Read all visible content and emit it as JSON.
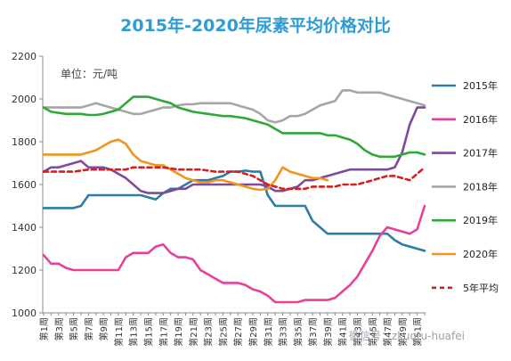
{
  "chart_data": {
    "type": "line",
    "title": "2015年-2020年尿素平均价格对比",
    "unit": "单位：元/吨",
    "watermark": "微信号：zkuotu-huafei",
    "ylim": [
      1000,
      2200
    ],
    "yticks": [
      1000,
      1200,
      1400,
      1600,
      1800,
      2000,
      2200
    ],
    "week_count": 52,
    "xtick_labels": [
      "第1周",
      "第3周",
      "第5周",
      "第7周",
      "第9周",
      "第11周",
      "第13周",
      "第15周",
      "第17周",
      "第19周",
      "第21周",
      "第23周",
      "第25周",
      "第27周",
      "第29周",
      "第31周",
      "第33周",
      "第35周",
      "第37周",
      "第39周",
      "第41周",
      "第43周",
      "第45周",
      "第47周",
      "第49周",
      "第51周"
    ],
    "grid": false,
    "legend_position": "right",
    "series": [
      {
        "name": "2015年",
        "color": "#2b7ca6",
        "dash": false,
        "values": [
          1490,
          1490,
          1490,
          1490,
          1490,
          1500,
          1550,
          1550,
          1550,
          1550,
          1550,
          1550,
          1550,
          1550,
          1540,
          1530,
          1560,
          1580,
          1580,
          1600,
          1620,
          1620,
          1620,
          1630,
          1640,
          1660,
          1660,
          1665,
          1660,
          1660,
          1550,
          1500,
          1500,
          1500,
          1500,
          1500,
          1430,
          1400,
          1370,
          1370,
          1370,
          1370,
          1370,
          1370,
          1370,
          1370,
          1370,
          1340,
          1320,
          1310,
          1300,
          1290
        ]
      },
      {
        "name": "2016年",
        "color": "#e8409a",
        "dash": false,
        "values": [
          1270,
          1230,
          1230,
          1210,
          1200,
          1200,
          1200,
          1200,
          1200,
          1200,
          1200,
          1260,
          1280,
          1280,
          1280,
          1310,
          1320,
          1280,
          1260,
          1260,
          1250,
          1200,
          1180,
          1160,
          1140,
          1140,
          1140,
          1130,
          1110,
          1100,
          1080,
          1050,
          1050,
          1050,
          1050,
          1060,
          1060,
          1060,
          1060,
          1070,
          1100,
          1130,
          1170,
          1230,
          1290,
          1360,
          1400,
          1390,
          1380,
          1370,
          1390,
          1500
        ]
      },
      {
        "name": "2017年",
        "color": "#7e4a9e",
        "dash": false,
        "values": [
          1660,
          1680,
          1680,
          1690,
          1700,
          1710,
          1680,
          1680,
          1680,
          1670,
          1650,
          1630,
          1600,
          1570,
          1560,
          1560,
          1560,
          1570,
          1580,
          1580,
          1600,
          1600,
          1600,
          1600,
          1600,
          1600,
          1600,
          1600,
          1600,
          1600,
          1590,
          1570,
          1570,
          1580,
          1590,
          1620,
          1620,
          1630,
          1640,
          1650,
          1660,
          1670,
          1670,
          1670,
          1670,
          1670,
          1670,
          1680,
          1750,
          1880,
          1960,
          1960
        ]
      },
      {
        "name": "2018年",
        "color": "#a6a6a6",
        "dash": false,
        "values": [
          1960,
          1960,
          1960,
          1960,
          1960,
          1960,
          1970,
          1980,
          1970,
          1960,
          1950,
          1940,
          1930,
          1930,
          1940,
          1950,
          1960,
          1960,
          1970,
          1975,
          1975,
          1980,
          1980,
          1980,
          1980,
          1980,
          1970,
          1960,
          1950,
          1930,
          1900,
          1890,
          1900,
          1920,
          1920,
          1930,
          1950,
          1970,
          1980,
          1990,
          2040,
          2040,
          2030,
          2030,
          2030,
          2030,
          2020,
          2010,
          2000,
          1990,
          1980,
          1970
        ]
      },
      {
        "name": "2019年",
        "color": "#2ea836",
        "dash": false,
        "values": [
          1960,
          1940,
          1935,
          1930,
          1930,
          1930,
          1925,
          1925,
          1930,
          1940,
          1950,
          1980,
          2010,
          2010,
          2010,
          2000,
          1990,
          1980,
          1960,
          1950,
          1940,
          1935,
          1930,
          1925,
          1920,
          1920,
          1915,
          1910,
          1900,
          1890,
          1880,
          1860,
          1840,
          1840,
          1840,
          1840,
          1840,
          1840,
          1830,
          1830,
          1820,
          1810,
          1790,
          1760,
          1740,
          1730,
          1730,
          1730,
          1740,
          1750,
          1750,
          1740
        ]
      },
      {
        "name": "2020年",
        "color": "#f0961e",
        "dash": false,
        "values": [
          1740,
          1740,
          1740,
          1740,
          1740,
          1740,
          1750,
          1760,
          1780,
          1800,
          1810,
          1790,
          1740,
          1710,
          1700,
          1690,
          1690,
          1670,
          1650,
          1630,
          1620,
          1610,
          1610,
          1620,
          1620,
          1610,
          1600,
          1590,
          1580,
          1575,
          1580,
          1620,
          1680,
          1660,
          1650,
          1640,
          1630,
          1630,
          1620
        ]
      },
      {
        "name": "5年平均",
        "color": "#d81e1e",
        "dash": true,
        "values": [
          1660,
          1660,
          1660,
          1660,
          1660,
          1665,
          1670,
          1670,
          1670,
          1670,
          1670,
          1670,
          1680,
          1680,
          1680,
          1680,
          1680,
          1675,
          1670,
          1670,
          1670,
          1670,
          1665,
          1660,
          1660,
          1660,
          1660,
          1650,
          1640,
          1620,
          1600,
          1590,
          1580,
          1580,
          1580,
          1580,
          1590,
          1590,
          1590,
          1590,
          1600,
          1600,
          1600,
          1610,
          1620,
          1630,
          1640,
          1640,
          1630,
          1620,
          1650,
          1680
        ]
      }
    ]
  }
}
